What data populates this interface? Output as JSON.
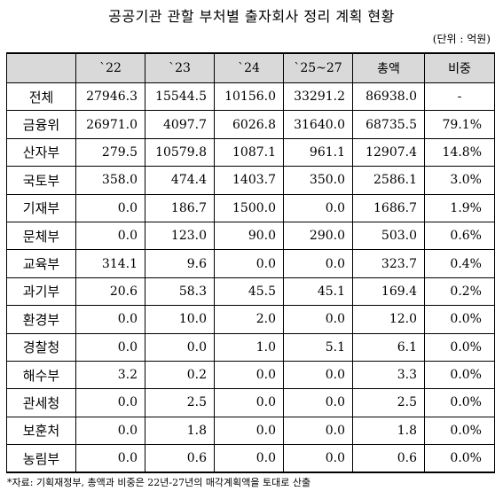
{
  "title": "공공기관 관할 부처별 출자회사 정리 계획 현황",
  "unit": "(단위 : 억원)",
  "table": {
    "headers": [
      "",
      "`22",
      "`23",
      "`24",
      "`25~27",
      "총액",
      "비중"
    ],
    "rows": [
      {
        "label": "전체",
        "v22": "27946.3",
        "v23": "15544.5",
        "v24": "10156.0",
        "v2527": "33291.2",
        "total": "86938.0",
        "share": "-"
      },
      {
        "label": "금융위",
        "v22": "26971.0",
        "v23": "4097.7",
        "v24": "6026.8",
        "v2527": "31640.0",
        "total": "68735.5",
        "share": "79.1%"
      },
      {
        "label": "산자부",
        "v22": "279.5",
        "v23": "10579.8",
        "v24": "1087.1",
        "v2527": "961.1",
        "total": "12907.4",
        "share": "14.8%"
      },
      {
        "label": "국토부",
        "v22": "358.0",
        "v23": "474.4",
        "v24": "1403.7",
        "v2527": "350.0",
        "total": "2586.1",
        "share": "3.0%"
      },
      {
        "label": "기재부",
        "v22": "0.0",
        "v23": "186.7",
        "v24": "1500.0",
        "v2527": "0.0",
        "total": "1686.7",
        "share": "1.9%"
      },
      {
        "label": "문체부",
        "v22": "0.0",
        "v23": "123.0",
        "v24": "90.0",
        "v2527": "290.0",
        "total": "503.0",
        "share": "0.6%"
      },
      {
        "label": "교육부",
        "v22": "314.1",
        "v23": "9.6",
        "v24": "0.0",
        "v2527": "0.0",
        "total": "323.7",
        "share": "0.4%"
      },
      {
        "label": "과기부",
        "v22": "20.6",
        "v23": "58.3",
        "v24": "45.5",
        "v2527": "45.1",
        "total": "169.4",
        "share": "0.2%"
      },
      {
        "label": "환경부",
        "v22": "0.0",
        "v23": "10.0",
        "v24": "2.0",
        "v2527": "0.0",
        "total": "12.0",
        "share": "0.0%"
      },
      {
        "label": "경찰청",
        "v22": "0.0",
        "v23": "0.0",
        "v24": "1.0",
        "v2527": "5.1",
        "total": "6.1",
        "share": "0.0%"
      },
      {
        "label": "해수부",
        "v22": "3.2",
        "v23": "0.2",
        "v24": "0.0",
        "v2527": "0.0",
        "total": "3.3",
        "share": "0.0%"
      },
      {
        "label": "관세청",
        "v22": "0.0",
        "v23": "2.5",
        "v24": "0.0",
        "v2527": "0.0",
        "total": "2.5",
        "share": "0.0%"
      },
      {
        "label": "보훈처",
        "v22": "0.0",
        "v23": "1.8",
        "v24": "0.0",
        "v2527": "0.0",
        "total": "1.8",
        "share": "0.0%"
      },
      {
        "label": "농림부",
        "v22": "0.0",
        "v23": "0.6",
        "v24": "0.0",
        "v2527": "0.0",
        "total": "0.6",
        "share": "0.0%"
      }
    ]
  },
  "footnote": "*자료: 기획재정부, 총액과 비중은 22년-27년의 매각계획액을 토대로 산출"
}
